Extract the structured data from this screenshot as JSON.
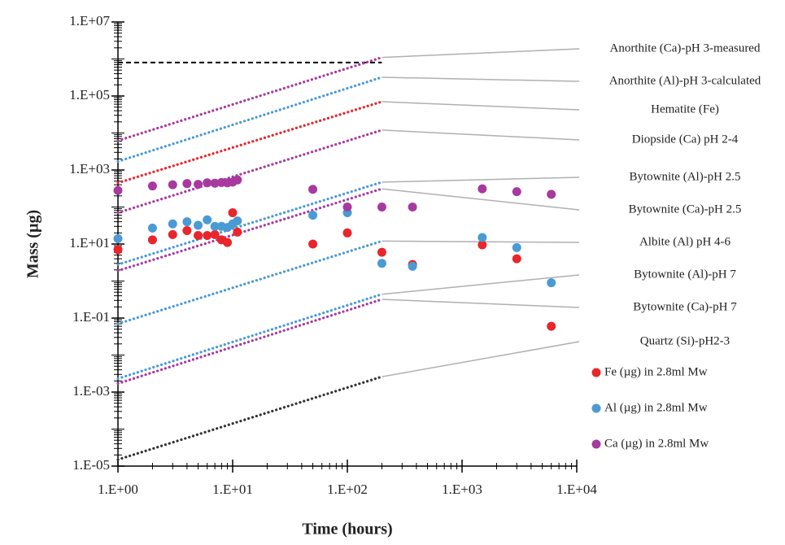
{
  "chart_data": {
    "type": "scatter",
    "x_label": "Time (hours)",
    "y_label": "Mass (µg)",
    "log_x": true,
    "log_y": true,
    "xlim": [
      1,
      10000
    ],
    "ylim": [
      1e-05,
      10000000
    ],
    "xticks": [
      {
        "value": 1,
        "label": "1.E+00"
      },
      {
        "value": 10,
        "label": "1.E+01"
      },
      {
        "value": 100,
        "label": "1.E+02"
      },
      {
        "value": 1000,
        "label": "1.E+03"
      },
      {
        "value": 10000,
        "label": "1.E+04"
      }
    ],
    "yticks": [
      {
        "value": 1e-05,
        "label": "1.E-05"
      },
      {
        "value": 0.001,
        "label": "1.E-03"
      },
      {
        "value": 0.1,
        "label": "1.E-01"
      },
      {
        "value": 10,
        "label": "1.E+01"
      },
      {
        "value": 1000,
        "label": "1.E+03"
      },
      {
        "value": 100000,
        "label": "1.E+05"
      },
      {
        "value": 10000000,
        "label": "1.E+07"
      }
    ],
    "series": [
      {
        "name": "Fe (µg) in 2.8ml Mw",
        "color": "#e8262b",
        "x": [
          1,
          2,
          3,
          4,
          5,
          6,
          7,
          8,
          9,
          10,
          11,
          50,
          100,
          200,
          370,
          1500,
          3000,
          6000
        ],
        "values": [
          7,
          13,
          18,
          23,
          17,
          17,
          18,
          13,
          11,
          70,
          21,
          10,
          20,
          6,
          2.8,
          9.5,
          4,
          0.06
        ]
      },
      {
        "name": "Al (µg) in 2.8ml Mw",
        "color": "#4a9ad4",
        "x": [
          1,
          2,
          3,
          4,
          5,
          6,
          7,
          8,
          9,
          10,
          11,
          50,
          100,
          200,
          370,
          1500,
          3000,
          6000
        ],
        "values": [
          14,
          27,
          35,
          40,
          32,
          45,
          30,
          30,
          28,
          35,
          42,
          60,
          70,
          3,
          2.5,
          15,
          8,
          0.9
        ]
      },
      {
        "name": "Ca (µg) in 2.8ml Mw",
        "color": "#a8399e",
        "x": [
          1,
          2,
          3,
          4,
          5,
          6,
          7,
          8,
          9,
          10,
          11,
          50,
          100,
          200,
          370,
          1500,
          3000,
          6000
        ],
        "values": [
          280,
          370,
          400,
          430,
          410,
          450,
          440,
          460,
          450,
          470,
          540,
          300,
          100,
          100,
          100,
          310,
          260,
          220
        ]
      }
    ],
    "lines": [
      {
        "name": "Anorthite (Ca)-pH 3-measured",
        "color": "#a8399e",
        "x": [
          1,
          200
        ],
        "values": [
          6200,
          1100000
        ]
      },
      {
        "name": "Anorthite (Al)-pH 3-calculated",
        "color": "#4a9ad4",
        "x": [
          1,
          200
        ],
        "values": [
          1700,
          320000
        ]
      },
      {
        "name": "Hematite (Fe)",
        "color": "#e8262b",
        "x": [
          1,
          200
        ],
        "values": [
          450,
          70000
        ]
      },
      {
        "name": "Diopside (Ca) pH 2-4",
        "color": "#a8399e",
        "x": [
          1,
          200
        ],
        "values": [
          70,
          12000
        ]
      },
      {
        "name": "Bytownite (Al)-pH 2.5",
        "color": "#4a9ad4",
        "x": [
          1,
          200
        ],
        "values": [
          2.8,
          470
        ]
      },
      {
        "name": "Bytownite (Ca)-pH 2.5",
        "color": "#a8399e",
        "x": [
          1,
          200
        ],
        "values": [
          1.9,
          310
        ]
      },
      {
        "name": "Albite (Al) pH 4-6",
        "color": "#4a9ad4",
        "x": [
          1,
          200
        ],
        "values": [
          0.07,
          12
        ]
      },
      {
        "name": "Bytownite (Al)-pH 7",
        "color": "#4a9ad4",
        "x": [
          1,
          200
        ],
        "values": [
          0.0023,
          0.44
        ]
      },
      {
        "name": "Bytownite (Ca)-pH 7",
        "color": "#a8399e",
        "x": [
          1,
          200
        ],
        "values": [
          0.0017,
          0.32
        ]
      },
      {
        "name": "Quartz (Si)-pH2-3",
        "color": "#333333",
        "x": [
          1,
          200
        ],
        "values": [
          1.5e-05,
          0.0026
        ]
      }
    ],
    "reference_lines": [
      {
        "color": "#000000",
        "x": [
          1,
          200
        ],
        "values": [
          800000,
          800000
        ]
      }
    ]
  }
}
